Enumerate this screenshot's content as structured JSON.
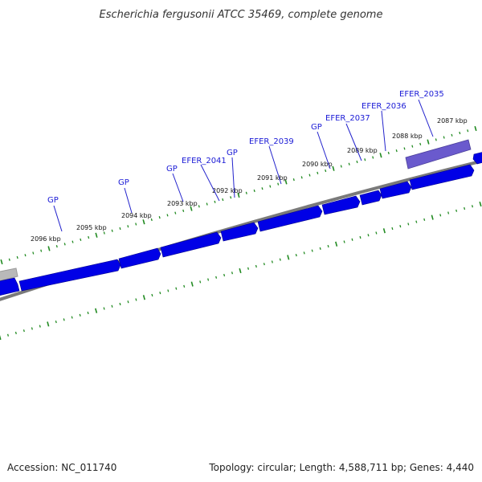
{
  "title": "Escherichia fergusonii ATCC 35469, complete genome",
  "accession": "Accession: NC_011740",
  "summary": "Topology: circular; Length: 4,588,711 bp; Genes: 4,440",
  "colors": {
    "gene_forward": "#0000e6",
    "gene_highlight": "#6a5acd",
    "gene_grey": "#b0b0b0",
    "backbone": "#7a7a7a",
    "ticks": "#228b22",
    "label": "#1a1ad6"
  },
  "ruler": [
    {
      "label": "2096 kbp"
    },
    {
      "label": "2095 kbp"
    },
    {
      "label": "2094 kbp"
    },
    {
      "label": "2093 kbp"
    },
    {
      "label": "2092 kbp"
    },
    {
      "label": "2091 kbp"
    },
    {
      "label": "2090 kbp"
    },
    {
      "label": "2089 kbp"
    },
    {
      "label": "2088 kbp"
    },
    {
      "label": "2087 kbp"
    }
  ],
  "gene_labels": [
    {
      "label": "GP"
    },
    {
      "label": "GP"
    },
    {
      "label": "GP"
    },
    {
      "label": "EFER_2041"
    },
    {
      "label": "GP"
    },
    {
      "label": "EFER_2039"
    },
    {
      "label": "GP"
    },
    {
      "label": "EFER_2037"
    },
    {
      "label": "EFER_2036"
    },
    {
      "label": "EFER_2035"
    }
  ]
}
